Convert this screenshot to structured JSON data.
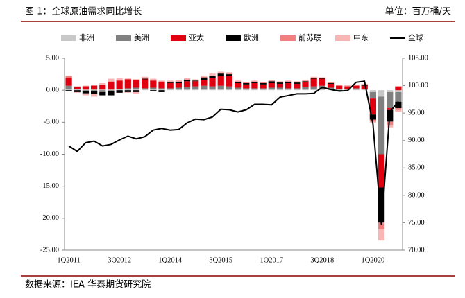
{
  "chart_data": {
    "type": "bar-line",
    "title": "图 1：全球原油需求同比增长",
    "unit_label": "单位：百万桶/天",
    "source": "数据来源：IEA 华泰期货研究院",
    "categories": [
      "1Q2011",
      null,
      null,
      null,
      null,
      null,
      "3Q2012",
      null,
      null,
      null,
      null,
      null,
      "1Q2014",
      null,
      null,
      null,
      null,
      null,
      "3Q2015",
      null,
      null,
      null,
      null,
      null,
      "1Q2017",
      null,
      null,
      null,
      null,
      null,
      "3Q2018",
      null,
      null,
      null,
      null,
      null,
      "1Q2020",
      null,
      null,
      null
    ],
    "series": [
      {
        "name": "非洲",
        "color": "#c8c8c8",
        "values": [
          0.1,
          0.1,
          0.1,
          0.1,
          0.1,
          0.1,
          0.1,
          0.1,
          0.1,
          0.1,
          0.1,
          0.1,
          0.1,
          0.1,
          0.1,
          0.1,
          0.1,
          0.1,
          0.1,
          0.1,
          0.1,
          0.1,
          0.1,
          0.1,
          0.1,
          0.1,
          0.1,
          0.1,
          0.1,
          0.1,
          0.1,
          0.1,
          0.1,
          0.1,
          0.1,
          0.1,
          -0.3,
          -1.0,
          -0.3,
          -0.3
        ]
      },
      {
        "name": "美洲",
        "color": "#808080",
        "values": [
          0.6,
          0.1,
          -0.2,
          -0.1,
          -0.3,
          -0.2,
          0.1,
          0.2,
          0.3,
          0.2,
          0.3,
          0.2,
          0.2,
          0.3,
          0.4,
          0.5,
          0.6,
          0.5,
          0.6,
          0.5,
          0.3,
          0.2,
          0.2,
          0.2,
          0.3,
          0.3,
          0.2,
          0.2,
          0.4,
          0.5,
          0.6,
          0.3,
          0.1,
          0.1,
          0.2,
          0.1,
          -1.0,
          -9.0,
          -2.5,
          -1.5
        ]
      },
      {
        "name": "亚太",
        "color": "#e0000f",
        "values": [
          1.3,
          0.3,
          0.5,
          0.6,
          0.7,
          1.2,
          1.3,
          1.4,
          1.2,
          1.4,
          1.1,
          1.0,
          0.8,
          0.7,
          0.9,
          0.8,
          0.9,
          1.3,
          1.5,
          1.6,
          0.7,
          0.6,
          0.8,
          0.6,
          0.7,
          0.6,
          0.8,
          0.7,
          0.8,
          1.2,
          1.1,
          0.6,
          0.5,
          0.4,
          0.4,
          0.5,
          -2.5,
          -5.2,
          -0.3,
          0.6
        ]
      },
      {
        "name": "欧洲",
        "color": "#000000",
        "values": [
          -0.2,
          -0.3,
          -0.3,
          -0.5,
          -0.5,
          -0.6,
          -0.4,
          -0.3,
          -0.3,
          0.1,
          -0.2,
          -0.3,
          0.1,
          0.2,
          0.2,
          0.1,
          0.4,
          0.3,
          0.4,
          0.3,
          0.2,
          0.2,
          0.2,
          0.2,
          0.3,
          0.2,
          0.2,
          0.2,
          0.1,
          0.1,
          0.1,
          0.1,
          -0.1,
          0.0,
          0.0,
          0.1,
          -0.8,
          -5.5,
          -1.8,
          -1.0
        ]
      },
      {
        "name": "前苏联",
        "color": "#f08080",
        "values": [
          0.2,
          0.1,
          0.1,
          0.1,
          0.1,
          0.1,
          0.1,
          0.1,
          0.1,
          0.1,
          0.1,
          0.1,
          0.1,
          0.1,
          0.1,
          0.1,
          0.1,
          0.1,
          0.1,
          0.1,
          0.1,
          0.1,
          0.1,
          0.1,
          0.1,
          0.1,
          0.1,
          0.1,
          0.1,
          0.1,
          0.1,
          0.1,
          0.1,
          0.1,
          0.1,
          0.1,
          -0.3,
          -1.0,
          -0.5,
          -0.3
        ]
      },
      {
        "name": "中东",
        "color": "#f9b4b4",
        "values": [
          0.1,
          -0.1,
          -0.3,
          -0.4,
          0.2,
          0.4,
          0.3,
          -0.1,
          -0.3,
          0.2,
          0.2,
          0.1,
          0.2,
          0.2,
          0.2,
          0.1,
          0.2,
          0.3,
          0.2,
          0.2,
          0.1,
          0.1,
          0.1,
          0.1,
          0.1,
          0.1,
          0.1,
          0.1,
          0.1,
          0.1,
          0.0,
          0.1,
          0.0,
          0.1,
          0.1,
          0.1,
          -0.2,
          -1.8,
          -0.4,
          -0.3
        ]
      },
      {
        "name": "全球",
        "color": "#000000",
        "axis": "y2",
        "type": "line",
        "values": [
          89.0,
          88.0,
          89.6,
          89.9,
          89.0,
          89.3,
          90.1,
          90.8,
          90.3,
          90.7,
          91.9,
          92.2,
          91.9,
          92.0,
          93.2,
          93.9,
          93.8,
          94.3,
          95.7,
          95.6,
          95.2,
          95.6,
          96.6,
          96.6,
          96.5,
          97.9,
          98.2,
          98.5,
          98.5,
          98.6,
          99.7,
          99.3,
          99.0,
          99.1,
          100.6,
          100.8,
          93.0,
          74.6,
          95.2,
          97.1
        ]
      }
    ],
    "ylim": [
      -25,
      5
    ],
    "yticks": [
      {
        "value": 5,
        "label": "5.00"
      },
      {
        "value": 0,
        "label": "0.00"
      },
      {
        "value": -5,
        "label": "-5.00"
      },
      {
        "value": -10,
        "label": "-10.00"
      },
      {
        "value": -15,
        "label": "-15.00"
      },
      {
        "value": -20,
        "label": "-20.00"
      },
      {
        "value": -25,
        "label": "-25.00"
      }
    ],
    "y2lim": [
      70,
      105
    ],
    "y2ticks": [
      {
        "value": 105,
        "label": "105.00"
      },
      {
        "value": 100,
        "label": "100.00"
      },
      {
        "value": 95,
        "label": "95.00"
      },
      {
        "value": 90,
        "label": "90.00"
      },
      {
        "value": 85,
        "label": "85.00"
      },
      {
        "value": 80,
        "label": "80.00"
      },
      {
        "value": 75,
        "label": "75.00"
      },
      {
        "value": 70,
        "label": "70.00"
      }
    ]
  }
}
